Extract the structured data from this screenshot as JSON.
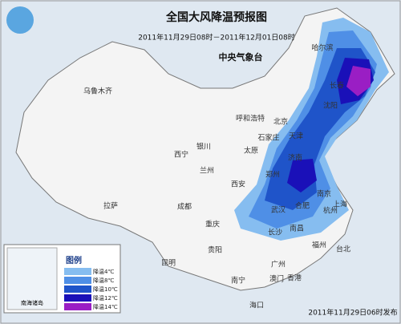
{
  "header": {
    "title": "全国大风降温预报图",
    "period": "2011年11月29日08时－2011年12月01日08时",
    "issuer": "中央气象台"
  },
  "cities": [
    "哈尔滨",
    "长春",
    "沈阳",
    "乌鲁木齐",
    "呼和浩特",
    "北京",
    "天津",
    "石家庄",
    "太原",
    "银川",
    "西宁",
    "兰州",
    "济南",
    "郑州",
    "西安",
    "合肥",
    "南京",
    "上海",
    "武汉",
    "杭州",
    "成都",
    "重庆",
    "拉萨",
    "长沙",
    "南昌",
    "贵阳",
    "福州",
    "昆明",
    "广州",
    "南宁",
    "台北",
    "海口",
    "澳门",
    "香港"
  ],
  "legend": {
    "title": "图例",
    "items": [
      "降温4℃",
      "降温8℃",
      "降温10℃",
      "降温12℃",
      "降温14℃"
    ]
  },
  "inset": {
    "label": "南海诸岛"
  },
  "footer": {
    "issued": "2011年11月29日06时发布"
  }
}
